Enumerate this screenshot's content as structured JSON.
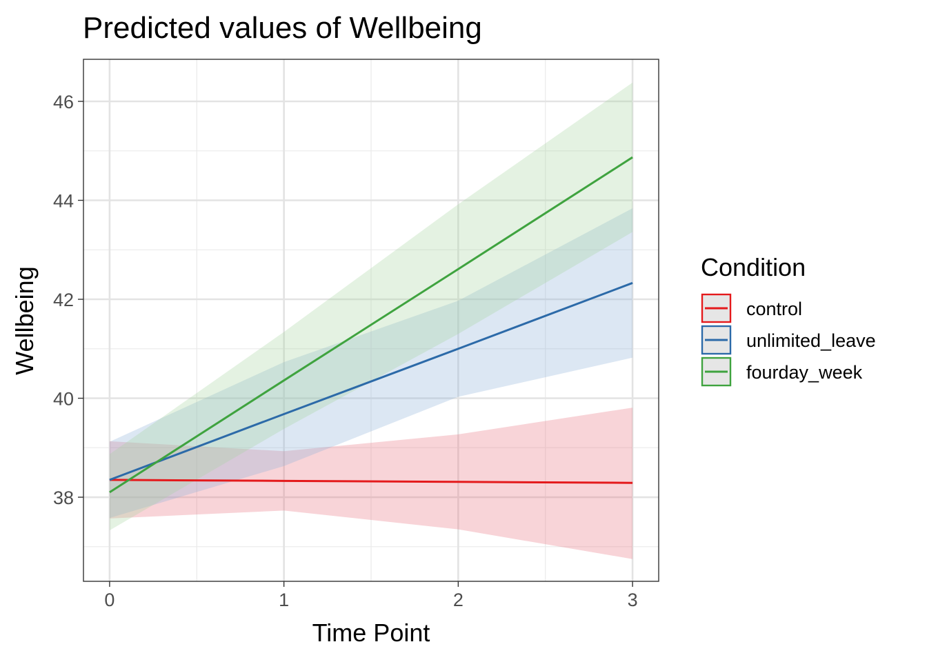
{
  "chart_data": {
    "type": "line",
    "title": "Predicted values of Wellbeing",
    "xlabel": "Time Point",
    "ylabel": "Wellbeing",
    "x": [
      0,
      1,
      2,
      3
    ],
    "x_ticks": [
      "0",
      "1",
      "2",
      "3"
    ],
    "y_ticks": [
      "38",
      "40",
      "42",
      "44",
      "46"
    ],
    "xlim": [
      -0.15,
      3.15
    ],
    "ylim": [
      36.3,
      46.85
    ],
    "grid": true,
    "legend": {
      "title": "Condition",
      "placement": "right"
    },
    "series": [
      {
        "name": "control",
        "color": "#e41a1c",
        "ribbon_color": "#e8707e",
        "values": [
          38.35,
          38.33,
          38.31,
          38.29
        ],
        "lower": [
          37.57,
          37.73,
          37.35,
          36.75
        ],
        "upper": [
          39.13,
          38.93,
          39.27,
          39.81
        ]
      },
      {
        "name": "unlimited_leave",
        "color": "#2c6aa8",
        "ribbon_color": "#8aaed6",
        "values": [
          38.35,
          39.68,
          41.0,
          42.33
        ],
        "lower": [
          37.58,
          38.63,
          40.03,
          40.82
        ],
        "upper": [
          39.12,
          40.73,
          41.97,
          43.84
        ]
      },
      {
        "name": "fourday_week",
        "color": "#3fa33f",
        "ribbon_color": "#a6d4a0",
        "values": [
          38.1,
          40.36,
          42.61,
          44.87
        ],
        "lower": [
          37.33,
          39.38,
          41.3,
          43.36
        ],
        "upper": [
          38.87,
          41.34,
          43.92,
          46.38
        ]
      }
    ]
  }
}
